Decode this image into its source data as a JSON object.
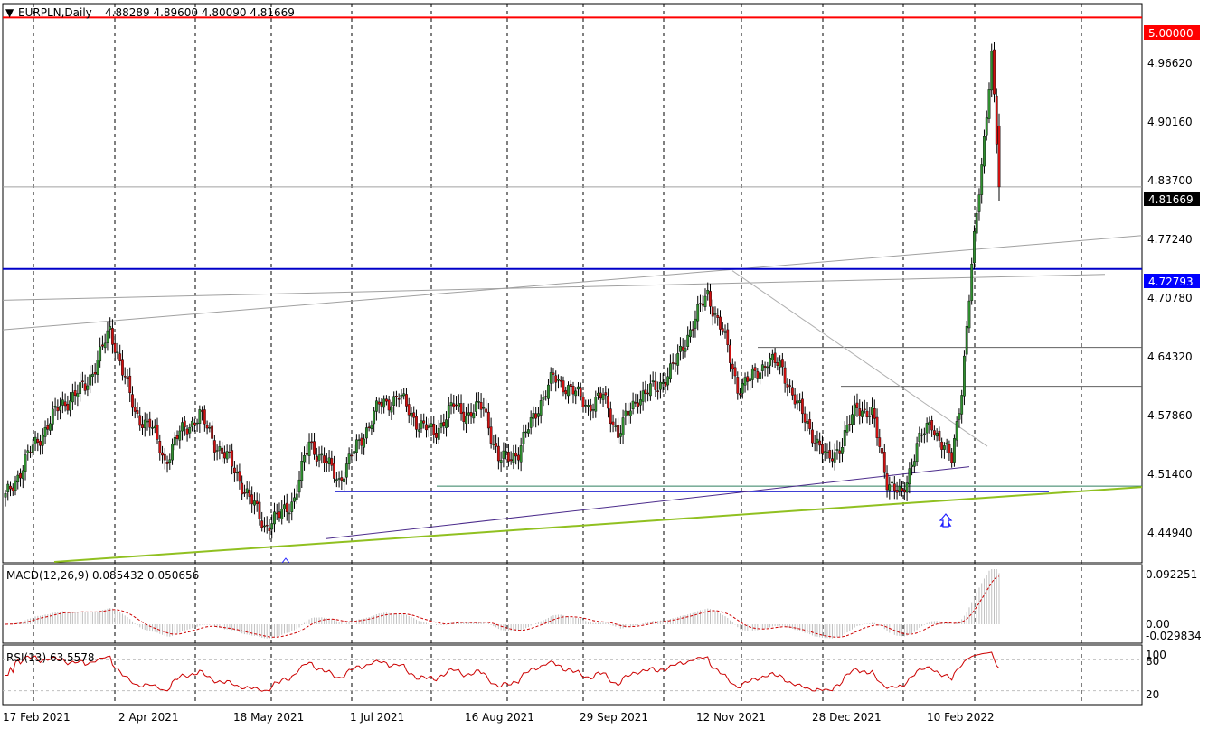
{
  "header": {
    "symbol": "EURPLN,Daily",
    "ohlc": "4.88289 4.89600 4.80090 4.81669",
    "macd": "MACD(12,26,9) 0.085432 0.050656",
    "rsi": "RSI(13) 63.5578"
  },
  "price_axis": {
    "ticks": [
      "4.96620",
      "4.90160",
      "4.83700",
      "4.77240",
      "4.70780",
      "4.64320",
      "4.57860",
      "4.51400",
      "4.44940"
    ],
    "tags": [
      {
        "text": "5.00000",
        "bg": "#ff0000",
        "fg": "#ffffff"
      },
      {
        "text": "4.81669",
        "bg": "#000000",
        "fg": "#ffffff"
      },
      {
        "text": "4.72793",
        "bg": "#0000ff",
        "fg": "#ffffff"
      }
    ]
  },
  "macd_axis": {
    "ticks": [
      "0.092251",
      "0.00",
      "-0.029834"
    ]
  },
  "rsi_axis": {
    "ticks": [
      "100",
      "80",
      "20"
    ]
  },
  "date_labels": [
    "17 Feb 2021",
    "2 Apr 2021",
    "18 May 2021",
    "1 Jul 2021",
    "16 Aug 2021",
    "29 Sep 2021",
    "12 Nov 2021",
    "28 Dec 2021",
    "10 Feb 2022"
  ],
  "colors": {
    "bull": "#2f8f2f",
    "bear": "#d01010",
    "resistance": "#ff0000",
    "support": "#0000c8",
    "trend": "#90c020",
    "macd_signal": "#cc0000",
    "rsi_line": "#cc0000"
  },
  "chart_data": {
    "type": "candlestick",
    "symbol": "EURPLN",
    "timeframe": "Daily",
    "ylim": [
      4.41,
      5.015
    ],
    "x_labels": [
      "17 Feb 2021",
      "2 Apr 2021",
      "18 May 2021",
      "1 Jul 2021",
      "16 Aug 2021",
      "29 Sep 2021",
      "12 Nov 2021",
      "28 Dec 2021",
      "10 Feb 2022"
    ],
    "last": {
      "open": 4.88289,
      "high": 4.896,
      "low": 4.8009,
      "close": 4.81669
    },
    "levels": {
      "resistance": 5.0,
      "support": 4.72793,
      "current": 4.81669
    },
    "close_path": [
      [
        0,
        4.48
      ],
      [
        10,
        4.53
      ],
      [
        22,
        4.58
      ],
      [
        32,
        4.6
      ],
      [
        42,
        4.66
      ],
      [
        46,
        4.63
      ],
      [
        52,
        4.57
      ],
      [
        58,
        4.56
      ],
      [
        64,
        4.52
      ],
      [
        70,
        4.55
      ],
      [
        78,
        4.57
      ],
      [
        84,
        4.54
      ],
      [
        90,
        4.52
      ],
      [
        96,
        4.49
      ],
      [
        104,
        4.45
      ],
      [
        110,
        4.46
      ],
      [
        116,
        4.48
      ],
      [
        122,
        4.54
      ],
      [
        128,
        4.52
      ],
      [
        134,
        4.5
      ],
      [
        142,
        4.54
      ],
      [
        150,
        4.58
      ],
      [
        158,
        4.59
      ],
      [
        166,
        4.56
      ],
      [
        172,
        4.55
      ],
      [
        180,
        4.58
      ],
      [
        186,
        4.57
      ],
      [
        192,
        4.58
      ],
      [
        198,
        4.52
      ],
      [
        206,
        4.53
      ],
      [
        214,
        4.58
      ],
      [
        220,
        4.61
      ],
      [
        226,
        4.6
      ],
      [
        234,
        4.58
      ],
      [
        240,
        4.59
      ],
      [
        246,
        4.55
      ],
      [
        254,
        4.59
      ],
      [
        262,
        4.6
      ],
      [
        270,
        4.63
      ],
      [
        276,
        4.67
      ],
      [
        282,
        4.7
      ],
      [
        288,
        4.66
      ],
      [
        294,
        4.6
      ],
      [
        300,
        4.61
      ],
      [
        306,
        4.63
      ],
      [
        312,
        4.62
      ],
      [
        318,
        4.58
      ],
      [
        324,
        4.55
      ],
      [
        330,
        4.52
      ],
      [
        336,
        4.54
      ],
      [
        342,
        4.58
      ],
      [
        348,
        4.57
      ],
      [
        354,
        4.5
      ],
      [
        360,
        4.48
      ],
      [
        366,
        4.54
      ],
      [
        372,
        4.56
      ],
      [
        380,
        4.52
      ],
      [
        384,
        4.6
      ],
      [
        388,
        4.73
      ],
      [
        392,
        4.84
      ],
      [
        396,
        4.96
      ],
      [
        399,
        4.81669
      ]
    ],
    "macd": {
      "ticks": [
        0.092251,
        0.0,
        -0.029834
      ],
      "last_main": 0.085432,
      "last_signal": 0.050656
    },
    "rsi": {
      "period": 13,
      "last": 63.5578,
      "levels": [
        80,
        20
      ]
    }
  }
}
